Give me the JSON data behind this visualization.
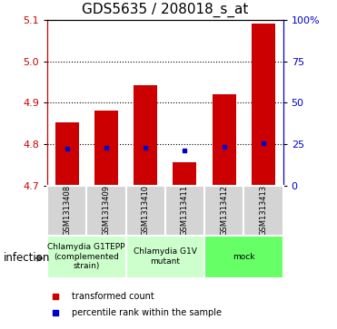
{
  "title": "GDS5635 / 208018_s_at",
  "samples": [
    "GSM1313408",
    "GSM1313409",
    "GSM1313410",
    "GSM1313411",
    "GSM1313412",
    "GSM1313413"
  ],
  "bar_tops": [
    4.852,
    4.882,
    4.942,
    4.758,
    4.92,
    5.09
  ],
  "bar_bottom": 4.7,
  "blue_vals": [
    4.79,
    4.792,
    4.792,
    4.786,
    4.793,
    4.802
  ],
  "ylim": [
    4.7,
    5.1
  ],
  "yticks_left": [
    4.7,
    4.8,
    4.9,
    5.0,
    5.1
  ],
  "yticks_right_pct": [
    0,
    25,
    50,
    75,
    100
  ],
  "yticks_right_vals": [
    4.7,
    4.8,
    4.9,
    5.0,
    5.1
  ],
  "bar_color": "#cc0000",
  "blue_color": "#0000cc",
  "group_defs": [
    {
      "start": 0,
      "end": 1,
      "color": "#ccffcc",
      "label": "Chlamydia G1TEPP\n(complemented\nstrain)"
    },
    {
      "start": 2,
      "end": 3,
      "color": "#ccffcc",
      "label": "Chlamydia G1V\nmutant"
    },
    {
      "start": 4,
      "end": 5,
      "color": "#66ff66",
      "label": "mock"
    }
  ],
  "factor_label": "infection",
  "legend_items": [
    "transformed count",
    "percentile rank within the sample"
  ],
  "title_fontsize": 11,
  "tick_fontsize": 8,
  "sample_fontsize": 6,
  "group_fontsize": 6.5,
  "bar_width": 0.6,
  "gray_color": "#d4d4d4"
}
